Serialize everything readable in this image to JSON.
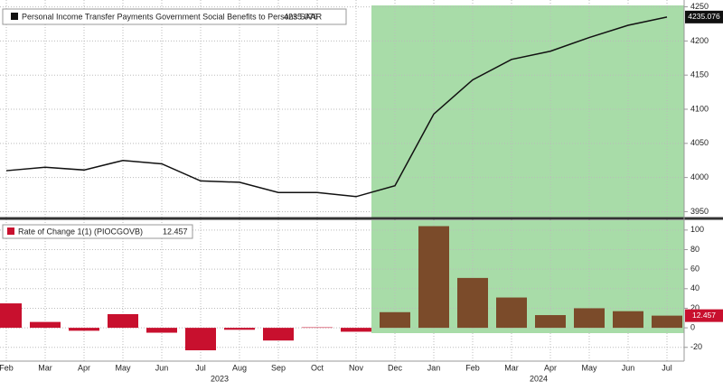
{
  "chart_data": [
    {
      "type": "line",
      "series": [
        {
          "name": "Personal Income Transfer Payments Government Social Benefits to Persons SAAR",
          "color": "#111111",
          "values": [
            4010,
            4015,
            4011,
            4025,
            4020,
            3995,
            3993,
            3978,
            3978,
            3972,
            3988,
            4093,
            4143,
            4173,
            4185,
            4205,
            4223,
            4235.076
          ],
          "last_label": "4235.076"
        }
      ],
      "ylim": [
        3940,
        4260
      ],
      "yticks": [
        3950,
        4000,
        4050,
        4100,
        4150,
        4200,
        4250
      ],
      "grid": true
    },
    {
      "type": "bar",
      "categories": [
        "Feb",
        "Mar",
        "Apr",
        "May",
        "Jun",
        "Jul",
        "Aug",
        "Sep",
        "Oct",
        "Nov",
        "Dec",
        "Jan",
        "Feb",
        "Mar",
        "Apr",
        "May",
        "Jun",
        "Jul"
      ],
      "years": [
        "2023",
        "2024"
      ],
      "series": [
        {
          "name": "Rate of Change 1(1) (PIOCGOVB)",
          "color": "#c8102e",
          "values": [
            25,
            6,
            -3,
            14,
            -5,
            -23,
            -2,
            -13,
            0.5,
            -4,
            16,
            104,
            51,
            31,
            13,
            20,
            17,
            12.457
          ],
          "colors": [
            "#c8102e",
            "#c8102e",
            "#c8102e",
            "#c8102e",
            "#c8102e",
            "#c8102e",
            "#c8102e",
            "#c8102e",
            "#c8102e",
            "#c8102e",
            "#7b4b2a",
            "#7b4b2a",
            "#7b4b2a",
            "#7b4b2a",
            "#7b4b2a",
            "#7b4b2a",
            "#7b4b2a",
            "#7b4b2a"
          ],
          "last_label": "12.457"
        }
      ],
      "ylim": [
        -30,
        110
      ],
      "yticks": [
        -20,
        0,
        20,
        40,
        60,
        80,
        100
      ],
      "grid": true
    }
  ]
}
